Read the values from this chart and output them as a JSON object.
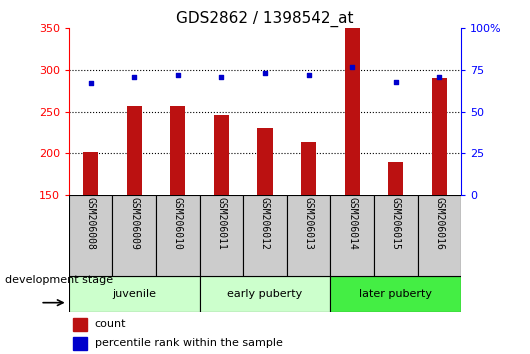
{
  "title": "GDS2862 / 1398542_at",
  "samples": [
    "GSM206008",
    "GSM206009",
    "GSM206010",
    "GSM206011",
    "GSM206012",
    "GSM206013",
    "GSM206014",
    "GSM206015",
    "GSM206016"
  ],
  "counts": [
    201,
    257,
    257,
    246,
    230,
    213,
    350,
    189,
    290
  ],
  "percentiles": [
    67,
    71,
    72,
    71,
    73,
    72,
    77,
    68,
    71
  ],
  "ylim_left": [
    150,
    350
  ],
  "ylim_right": [
    0,
    100
  ],
  "yticks_left": [
    150,
    200,
    250,
    300,
    350
  ],
  "yticks_right": [
    0,
    25,
    50,
    75,
    100
  ],
  "yticklabels_right": [
    "0",
    "25",
    "50",
    "75",
    "100%"
  ],
  "bar_color": "#bb1111",
  "dot_color": "#0000cc",
  "groups": [
    {
      "label": "juvenile",
      "start": 0,
      "end": 3,
      "color": "#ccffcc"
    },
    {
      "label": "early puberty",
      "start": 3,
      "end": 6,
      "color": "#ccffcc"
    },
    {
      "label": "later puberty",
      "start": 6,
      "end": 9,
      "color": "#44ee44"
    }
  ],
  "group_label": "development stage",
  "legend_count": "count",
  "legend_percentile": "percentile rank within the sample",
  "background_color": "#ffffff",
  "tick_area_color": "#cccccc",
  "title_fontsize": 11,
  "axis_fontsize": 8,
  "label_fontsize": 8
}
